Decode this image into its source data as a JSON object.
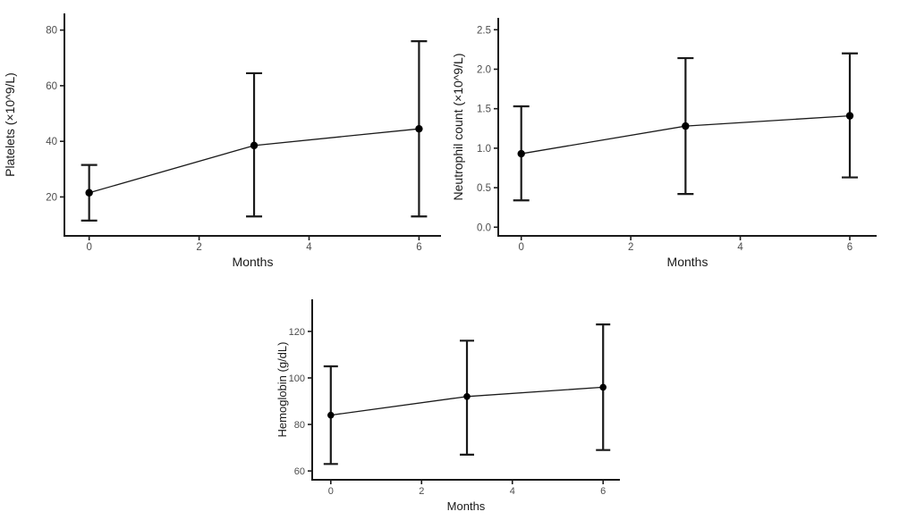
{
  "figure": {
    "description": "Three error-bar line plots of blood counts over months",
    "background": "#ffffff"
  },
  "colors": {
    "axis_line": "#1a1a1a",
    "data_line": "#1a1a1a",
    "point_fill": "#000000",
    "error_bar": "#1a1a1a",
    "tick_label_text": "#4d4d4d",
    "axis_title_text": "#1a1a1a",
    "background": "#ffffff"
  },
  "chart_data": [
    {
      "id": "platelets",
      "type": "line",
      "title": "",
      "xlabel": "Months",
      "ylabel": "Platelets (×10^9/L)",
      "x": [
        0,
        3,
        6
      ],
      "series": [
        {
          "name": "Platelets mean",
          "values": [
            21.5,
            38.5,
            44.5
          ],
          "error_lower": [
            11.5,
            13,
            13
          ],
          "error_upper": [
            31.5,
            64.5,
            76
          ]
        }
      ],
      "xtick_values": [
        0,
        2,
        4,
        6
      ],
      "xtick_labels": [
        "0",
        "2",
        "4",
        "6"
      ],
      "ytick_values": [
        20,
        40,
        60,
        80
      ],
      "ytick_labels": [
        "20",
        "40",
        "60",
        "80"
      ],
      "xlim": [
        -0.45,
        6.4
      ],
      "ylim": [
        6,
        86
      ],
      "grid": false,
      "legend": "none"
    },
    {
      "id": "neutrophils",
      "type": "line",
      "title": "",
      "xlabel": "Months",
      "ylabel": "Neutrophil count (×10^9/L)",
      "x": [
        0,
        3,
        6
      ],
      "series": [
        {
          "name": "Neutrophil count mean",
          "values": [
            0.93,
            1.28,
            1.41
          ],
          "error_lower": [
            0.34,
            0.42,
            0.63
          ],
          "error_upper": [
            1.53,
            2.14,
            2.2
          ]
        }
      ],
      "xtick_values": [
        0,
        2,
        4,
        6
      ],
      "xtick_labels": [
        "0",
        "2",
        "4",
        "6"
      ],
      "ytick_values": [
        0.0,
        0.5,
        1.0,
        1.5,
        2.0,
        2.5
      ],
      "ytick_labels": [
        "0.0",
        "0.5",
        "1.0",
        "1.5",
        "2.0",
        "2.5"
      ],
      "xlim": [
        -0.42,
        6.49
      ],
      "ylim": [
        -0.11,
        2.65
      ],
      "grid": false,
      "legend": "none"
    },
    {
      "id": "hemoglobin",
      "type": "line",
      "title": "",
      "xlabel": "Months",
      "ylabel": "Hemoglobin (g/dL)",
      "x": [
        0,
        3,
        6
      ],
      "series": [
        {
          "name": "Hemoglobin mean",
          "values": [
            84,
            92,
            96
          ],
          "error_lower": [
            63,
            67,
            69
          ],
          "error_upper": [
            105,
            116,
            123
          ]
        }
      ],
      "xtick_values": [
        0,
        2,
        4,
        6
      ],
      "xtick_labels": [
        "0",
        "2",
        "4",
        "6"
      ],
      "ytick_values": [
        60,
        80,
        100,
        120
      ],
      "ytick_labels": [
        "60",
        "80",
        "100",
        "120"
      ],
      "xlim": [
        -0.41,
        6.37
      ],
      "ylim": [
        56.2,
        133.8
      ],
      "grid": false,
      "legend": "none"
    }
  ]
}
